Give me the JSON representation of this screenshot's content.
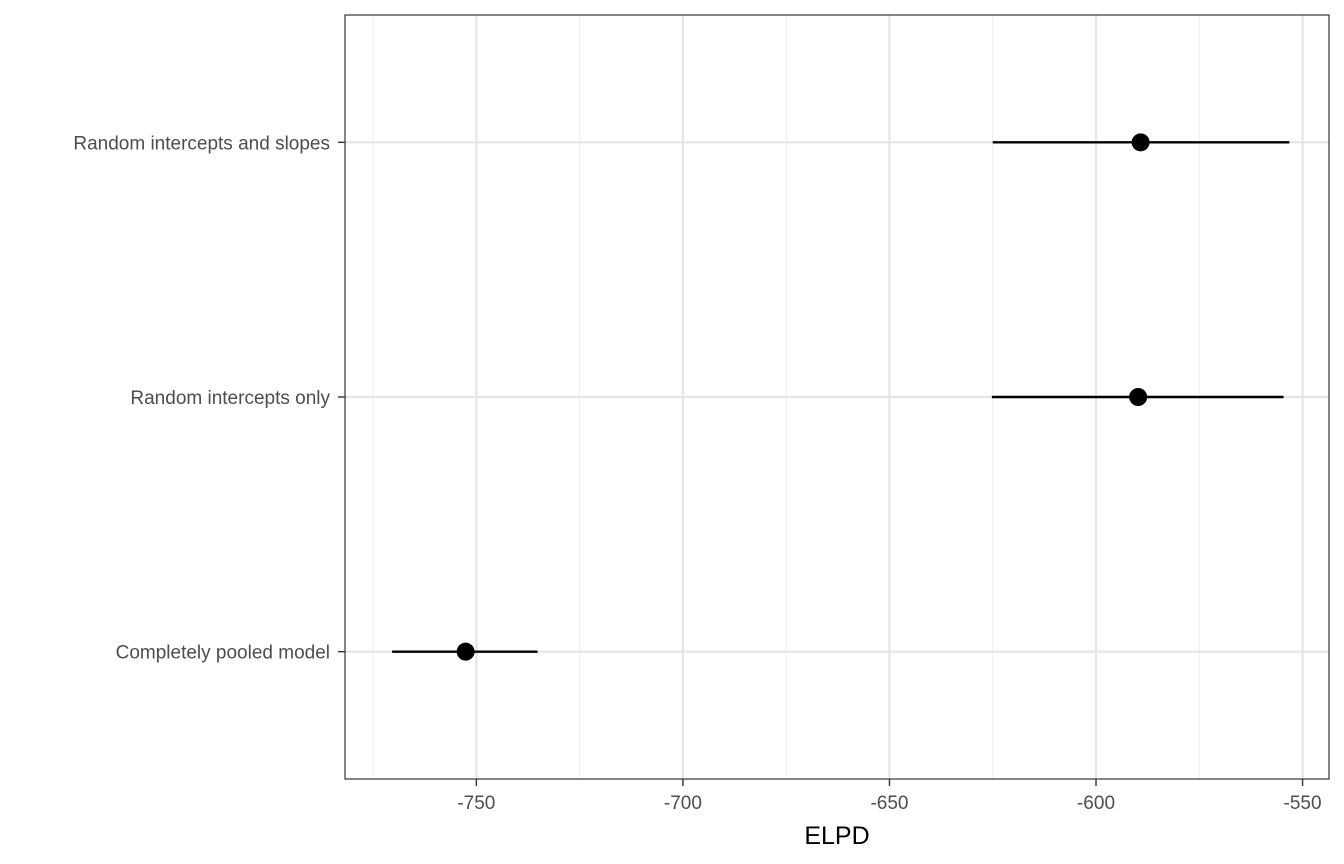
{
  "chart_data": {
    "type": "scatter",
    "title": "",
    "xlabel": "ELPD",
    "ylabel": "",
    "xlim": [
      -781.8,
      -543.6
    ],
    "xticks": [
      -750,
      -700,
      -650,
      -600,
      -550
    ],
    "xtick_labels": [
      "-750",
      "-700",
      "-650",
      "-600",
      "-550"
    ],
    "x_minor_ticks": [
      -775,
      -725,
      -675,
      -625,
      -575
    ],
    "grid": true,
    "legend": "none",
    "categories": [
      "Random intercepts and slopes",
      "Random intercepts only",
      "Completely pooled model"
    ],
    "points": [
      {
        "model": "Random intercepts and slopes",
        "elpd": -589.2,
        "lower": -625.0,
        "upper": -553.2
      },
      {
        "model": "Random intercepts only",
        "elpd": -589.8,
        "lower": -625.2,
        "upper": -554.6
      },
      {
        "model": "Completely pooled model",
        "elpd": -752.6,
        "lower": -770.4,
        "upper": -735.2
      }
    ],
    "colors": {
      "panel_border": "#333333",
      "grid_major": "#e5e5e5",
      "grid_minor": "#f0f0f0",
      "point": "#000000",
      "tick_text": "#4d4d4d"
    }
  }
}
